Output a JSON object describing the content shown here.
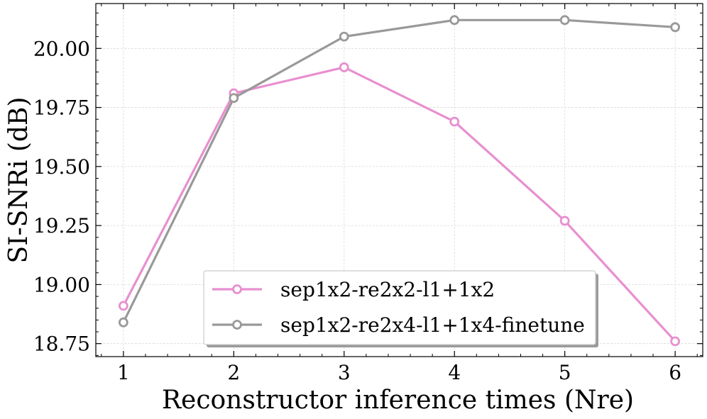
{
  "chart_data": {
    "type": "line",
    "title": "",
    "xlabel": "Reconstructor inference times (Nre)",
    "ylabel": "SI-SNRi (dB)",
    "x": [
      1,
      2,
      3,
      4,
      5,
      6
    ],
    "xticks": [
      "1",
      "2",
      "3",
      "4",
      "5",
      "6"
    ],
    "yticks": [
      "18.75",
      "19.00",
      "19.25",
      "19.50",
      "19.75",
      "20.00"
    ],
    "xlim": [
      0.75,
      6.25
    ],
    "ylim": [
      18.695,
      20.19
    ],
    "grid": true,
    "legend_position": "bottom-center",
    "series": [
      {
        "name": "sep1x2-re2x2-l1+1x2",
        "color": "#e88fd0",
        "marker": "open-circle",
        "values": [
          18.91,
          19.81,
          19.92,
          19.69,
          19.27,
          18.76
        ]
      },
      {
        "name": "sep1x2-re2x4-l1+1x4-finetune",
        "color": "#999999",
        "marker": "open-circle",
        "values": [
          18.84,
          19.79,
          20.05,
          20.12,
          20.12,
          20.09
        ]
      }
    ]
  }
}
